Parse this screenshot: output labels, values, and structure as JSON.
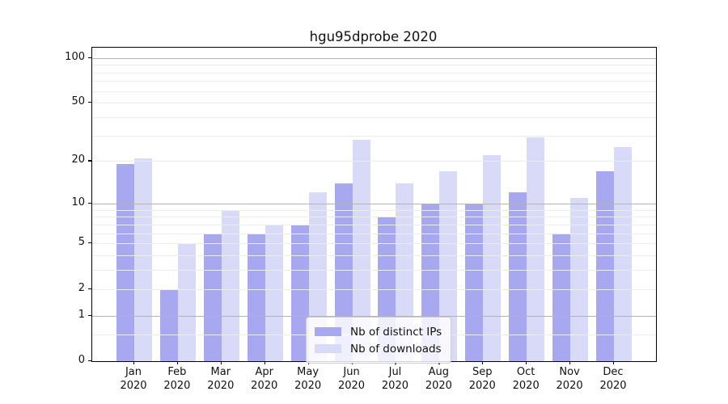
{
  "title": "hgu95dprobe 2020",
  "chart_data": {
    "type": "bar",
    "title": "hgu95dprobe 2020",
    "categories": [
      "Jan",
      "Feb",
      "Mar",
      "Apr",
      "May",
      "Jun",
      "Jul",
      "Aug",
      "Sep",
      "Oct",
      "Nov",
      "Dec"
    ],
    "x_year": "2020",
    "series": [
      {
        "name": "Nb of distinct IPs",
        "color": "#a8a8f0",
        "values": [
          19,
          2,
          6,
          6,
          7,
          14,
          8,
          10,
          10,
          12,
          6,
          17
        ]
      },
      {
        "name": "Nb of downloads",
        "color": "#d9d9f8",
        "values": [
          21,
          5,
          9,
          7,
          12,
          28,
          14,
          17,
          22,
          29,
          11,
          25
        ]
      }
    ],
    "yscale": "log1p",
    "ylim": [
      0,
      117
    ],
    "ytick_labels": [
      "100",
      "50",
      "20",
      "10",
      "5",
      "2",
      "1",
      "0"
    ],
    "ytick_values": [
      100,
      50,
      20,
      10,
      5,
      2,
      1,
      0
    ],
    "major_gridline_values": [
      100,
      10,
      1
    ],
    "minor_gridline_values": [
      0.5,
      2,
      3,
      4,
      5,
      6,
      7,
      8,
      9,
      20,
      30,
      40,
      50,
      60,
      70,
      80,
      90
    ],
    "grid": true,
    "legend_position": "lower center"
  },
  "colors": {
    "background": "#ffffff",
    "axis": "#000000",
    "text": "#111111",
    "grid_major": "#b3b3b3",
    "grid_minor": "#ececec",
    "legend_border": "#cccccc"
  }
}
